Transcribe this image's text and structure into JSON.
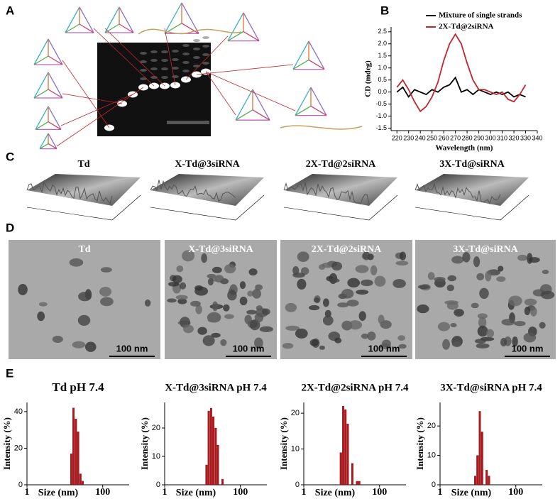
{
  "panel_labels": [
    "A",
    "B",
    "C",
    "D",
    "E"
  ],
  "afm": {
    "titles": [
      "Td",
      "X-Td@3siRNA",
      "2X-Td@2siRNA",
      "3X-Td@siRNA"
    ]
  },
  "tem": {
    "titles": [
      "Td",
      "X-Td@3siRNA",
      "2X-Td@2siRNA",
      "3X-Td@siRNA"
    ],
    "scale_bar": "100 nm"
  },
  "chart_data": [
    {
      "type": "line",
      "xlabel": "Wavelength (nm)",
      "ylabel": "CD (mdeg)",
      "legend": "top",
      "x": [
        220,
        225,
        230,
        235,
        240,
        245,
        250,
        255,
        260,
        265,
        270,
        275,
        280,
        285,
        290,
        295,
        300,
        305,
        310,
        315,
        320,
        325,
        330
      ],
      "series": [
        {
          "name": "Mixture of single strands",
          "color": "#000000",
          "values": [
            0.0,
            0.2,
            -0.2,
            0.1,
            0.0,
            -0.1,
            0.1,
            0.0,
            0.2,
            0.3,
            0.6,
            0.0,
            0.1,
            -0.1,
            0.1,
            0.0,
            -0.1,
            0.0,
            -0.1,
            0.0,
            -0.2,
            -0.1,
            -0.2
          ]
        },
        {
          "name": "2X-Td@2siRNA",
          "color": "#c0272d",
          "values": [
            0.2,
            0.5,
            0.1,
            -0.4,
            -0.8,
            -0.6,
            -0.2,
            0.4,
            1.3,
            2.0,
            2.4,
            2.0,
            1.2,
            0.5,
            0.1,
            0.1,
            0.0,
            -0.1,
            0.0,
            -0.3,
            -0.4,
            -0.1,
            0.3
          ]
        }
      ],
      "xlim": [
        215,
        340
      ],
      "xticks": [
        220,
        230,
        240,
        250,
        260,
        270,
        280,
        290,
        300,
        310,
        320,
        330,
        340
      ],
      "ylim": [
        -1.6,
        2.7
      ],
      "yticks": [
        {
          "value": -1.5,
          "label": "-1.5"
        },
        {
          "value": -1,
          "label": "-1.0"
        },
        {
          "value": -0.5,
          "label": "-0.5"
        },
        {
          "value": 0,
          "label": "0.0"
        },
        {
          "value": 0.5,
          "label": "0.5"
        },
        {
          "value": 1,
          "label": "1.0"
        },
        {
          "value": 1.5,
          "label": "1.5"
        },
        {
          "value": 2,
          "label": "2.0"
        },
        {
          "value": 2.5,
          "label": "2.5"
        }
      ]
    },
    {
      "type": "histogram",
      "title": "Td pH 7.4",
      "xlabel": "Size (nm)",
      "ylabel": "Intensity (%)",
      "color": "#b5161c",
      "xscale": "log",
      "bins": [
        14,
        16,
        18.4,
        21.2,
        24.4,
        28,
        32.2
      ],
      "values": [
        17,
        42,
        36,
        29,
        6,
        2
      ],
      "xlim": [
        1,
        500
      ],
      "xticks": [
        1,
        100
      ],
      "ylim": [
        0,
        45
      ],
      "yticks": [
        0,
        20,
        40
      ]
    },
    {
      "type": "histogram",
      "title": "X-Td@3siRNA pH 7.4",
      "xlabel": "Size (nm)",
      "ylabel": "Intensity (%)",
      "color": "#b5161c",
      "xscale": "log",
      "bins": [
        12,
        13.8,
        15.9,
        18.2,
        21,
        24.1,
        27.7,
        31.9,
        36.7
      ],
      "values": [
        7,
        26,
        27,
        24,
        20,
        14,
        0,
        2
      ],
      "xlim": [
        1,
        500
      ],
      "xticks": [
        1,
        100
      ],
      "ylim": [
        0,
        29
      ],
      "yticks": [
        0,
        10,
        20
      ]
    },
    {
      "type": "histogram",
      "title": "2X-Td@2siRNA pH 7.4",
      "xlabel": "Size (nm)",
      "ylabel": "Intensity (%)",
      "color": "#b5161c",
      "xscale": "log",
      "bins": [
        9,
        10.4,
        11.9,
        13.7,
        15.8,
        18.1,
        20.8,
        24,
        27.6,
        31.7
      ],
      "values": [
        9,
        22,
        21,
        17,
        0,
        6,
        0,
        1,
        1
      ],
      "xlim": [
        1,
        500
      ],
      "xticks": [
        1,
        100
      ],
      "ylim": [
        0,
        23
      ],
      "yticks": [
        0,
        10,
        20
      ]
    },
    {
      "type": "histogram",
      "title": "3X-Td@siRNA pH 7.4",
      "xlabel": "Size (nm)",
      "ylabel": "Intensity (%)",
      "color": "#b5161c",
      "xscale": "log",
      "bins": [
        8,
        9.2,
        10.6,
        12.2,
        14,
        16.1,
        18.5,
        21.3
      ],
      "values": [
        3,
        10,
        25,
        18,
        0,
        5,
        3
      ],
      "xlim": [
        1,
        500
      ],
      "xticks": [
        1,
        100
      ],
      "ylim": [
        0,
        28
      ],
      "yticks": [
        0,
        10,
        20
      ]
    }
  ]
}
